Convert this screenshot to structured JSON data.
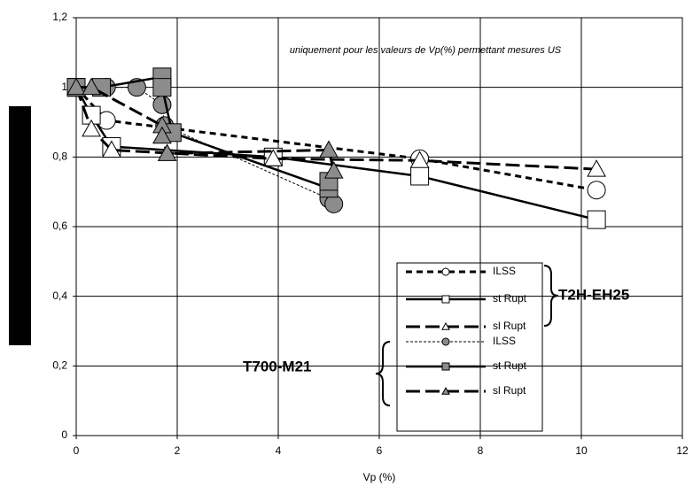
{
  "chart_data": {
    "type": "line",
    "note": "uniquement pour les valeurs de Vp(%) permettant mesures US",
    "xlabel": "Vp (%)",
    "group_labels": [
      "T2H-EH25",
      "T700-M21"
    ],
    "xlim": [
      0,
      12
    ],
    "xticks": [
      0,
      2,
      4,
      6,
      8,
      10,
      12
    ],
    "ylim": [
      0,
      1.2
    ],
    "yticks": [
      0,
      {
        "value": 0.2,
        "label": "0,2"
      },
      {
        "value": 0.4,
        "label": "0,4"
      },
      {
        "value": 0.6,
        "label": "0,6"
      },
      {
        "value": 0.8,
        "label": "0,8"
      },
      {
        "value": 1,
        "label": "1"
      },
      {
        "value": 1.2,
        "label": "1,2"
      }
    ],
    "grid": true,
    "series": [
      {
        "name": "ILSS",
        "color": "#000000",
        "marker": "circle",
        "fill": "#ffffff",
        "dash": "7,5",
        "width": 3,
        "x": [
          0,
          0.6,
          6.8,
          10.3
        ],
        "values": [
          1.0,
          0.905,
          0.795,
          0.705
        ]
      },
      {
        "name": "st Rupt",
        "color": "#000000",
        "marker": "square",
        "fill": "#ffffff",
        "dash": "",
        "width": 2.5,
        "x": [
          0,
          0.3,
          0.7,
          3.9,
          6.8,
          10.3
        ],
        "values": [
          1.0,
          0.92,
          0.83,
          0.8,
          0.745,
          0.62
        ]
      },
      {
        "name": "sl Rupt",
        "color": "#000000",
        "marker": "triangle",
        "fill": "#ffffff",
        "dash": "16,6",
        "width": 3,
        "x": [
          0,
          0.3,
          0.7,
          3.9,
          6.8,
          10.3
        ],
        "values": [
          1.0,
          0.88,
          0.82,
          0.795,
          0.79,
          0.765
        ]
      },
      {
        "name": "ILSS",
        "color": "#000000",
        "marker": "circle",
        "fill": "#8c8c8c",
        "dash": "3,2",
        "width": 1,
        "x": [
          0,
          0.6,
          1.2,
          1.7,
          1.75,
          5.0,
          5.1
        ],
        "values": [
          1.0,
          1.0,
          1.0,
          0.95,
          0.89,
          0.68,
          0.665
        ]
      },
      {
        "name": "st Rupt",
        "color": "#000000",
        "marker": "square",
        "fill": "#8c8c8c",
        "dash": "",
        "width": 2.5,
        "x": [
          0,
          0.5,
          1.7,
          1.7,
          1.9,
          5.0,
          5.0
        ],
        "values": [
          1.0,
          1.0,
          1.03,
          1.0,
          0.87,
          0.71,
          0.73
        ]
      },
      {
        "name": "sl Rupt",
        "color": "#000000",
        "marker": "triangle",
        "fill": "#8c8c8c",
        "dash": "16,6",
        "width": 3,
        "x": [
          0,
          0.3,
          1.7,
          1.7,
          1.8,
          5.0,
          5.1
        ],
        "values": [
          1.0,
          1.0,
          0.89,
          0.86,
          0.81,
          0.82,
          0.76
        ]
      }
    ]
  }
}
